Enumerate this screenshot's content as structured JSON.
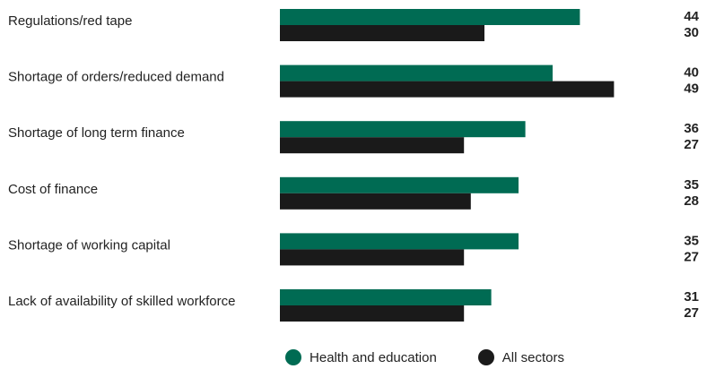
{
  "chart_data": {
    "type": "bar",
    "orientation": "horizontal",
    "categories": [
      "Regulations/red tape",
      "Shortage of orders/reduced demand",
      "Shortage of long term finance",
      "Cost of finance",
      "Shortage of working capital",
      "Lack of availability of skilled workforce"
    ],
    "series": [
      {
        "name": "Health and education",
        "color": "#006b53",
        "values": [
          44,
          40,
          36,
          35,
          35,
          31
        ]
      },
      {
        "name": "All sectors",
        "color": "#1a1a1a",
        "values": [
          30,
          49,
          27,
          28,
          27,
          27
        ]
      }
    ],
    "xlim": [
      0,
      100
    ],
    "grid": false,
    "legend_position": "bottom"
  }
}
